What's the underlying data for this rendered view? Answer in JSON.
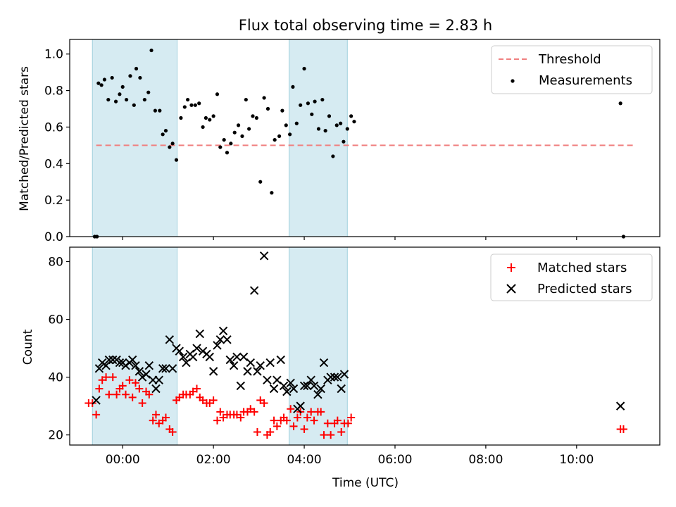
{
  "chart_data": [
    {
      "type": "scatter",
      "title": "Flux total observing time = 2.83 h",
      "xlabel": "",
      "ylabel": "Matched/Predicted stars",
      "xlim": [
        "-01:10",
        "11:50"
      ],
      "ylim": [
        0,
        1.08
      ],
      "yticks": [
        0.0,
        0.2,
        0.4,
        0.6,
        0.8,
        1.0
      ],
      "ytick_labels": [
        "0.0",
        "0.2",
        "0.4",
        "0.6",
        "0.8",
        "1.0"
      ],
      "shaded_spans": [
        [
          "-00:40",
          "01:12"
        ],
        [
          "03:40",
          "04:57"
        ]
      ],
      "threshold": {
        "name": "Threshold",
        "y": 0.5,
        "x_range": [
          "-00:35",
          "11:15"
        ],
        "color": "#f08080",
        "style": "dashed"
      },
      "legend": {
        "placement": "top-right",
        "entries": [
          "Threshold",
          "Measurements"
        ]
      },
      "series": [
        {
          "name": "Measurements",
          "color": "#000000",
          "marker": "dot",
          "points": [
            [
              "-00:37",
              0.0
            ],
            [
              "-00:34",
              0.0
            ],
            [
              "-00:32",
              0.84
            ],
            [
              "-00:28",
              0.83
            ],
            [
              "-00:24",
              0.86
            ],
            [
              "-00:19",
              0.75
            ],
            [
              "-00:14",
              0.87
            ],
            [
              "-00:09",
              0.74
            ],
            [
              "-00:04",
              0.78
            ],
            [
              "00:00",
              0.82
            ],
            [
              "00:05",
              0.75
            ],
            [
              "00:10",
              0.88
            ],
            [
              "00:15",
              0.72
            ],
            [
              "00:18",
              0.92
            ],
            [
              "00:23",
              0.87
            ],
            [
              "00:29",
              0.75
            ],
            [
              "00:34",
              0.79
            ],
            [
              "00:38",
              1.02
            ],
            [
              "00:43",
              0.69
            ],
            [
              "00:49",
              0.69
            ],
            [
              "00:53",
              0.56
            ],
            [
              "00:57",
              0.58
            ],
            [
              "01:02",
              0.49
            ],
            [
              "01:06",
              0.51
            ],
            [
              "01:11",
              0.42
            ],
            [
              "01:17",
              0.65
            ],
            [
              "01:22",
              0.71
            ],
            [
              "01:26",
              0.75
            ],
            [
              "01:31",
              0.72
            ],
            [
              "01:36",
              0.72
            ],
            [
              "01:41",
              0.73
            ],
            [
              "01:46",
              0.6
            ],
            [
              "01:50",
              0.65
            ],
            [
              "01:55",
              0.64
            ],
            [
              "02:00",
              0.66
            ],
            [
              "02:05",
              0.78
            ],
            [
              "02:09",
              0.49
            ],
            [
              "02:14",
              0.53
            ],
            [
              "02:18",
              0.46
            ],
            [
              "02:23",
              0.51
            ],
            [
              "02:28",
              0.57
            ],
            [
              "02:33",
              0.61
            ],
            [
              "02:38",
              0.55
            ],
            [
              "02:43",
              0.75
            ],
            [
              "02:47",
              0.59
            ],
            [
              "02:52",
              0.66
            ],
            [
              "02:57",
              0.65
            ],
            [
              "03:02",
              0.3
            ],
            [
              "03:07",
              0.76
            ],
            [
              "03:12",
              0.7
            ],
            [
              "03:17",
              0.24
            ],
            [
              "03:21",
              0.53
            ],
            [
              "03:27",
              0.55
            ],
            [
              "03:31",
              0.69
            ],
            [
              "03:36",
              0.61
            ],
            [
              "03:41",
              0.56
            ],
            [
              "03:45",
              0.82
            ],
            [
              "03:50",
              0.62
            ],
            [
              "03:55",
              0.72
            ],
            [
              "04:00",
              0.92
            ],
            [
              "04:05",
              0.73
            ],
            [
              "04:10",
              0.67
            ],
            [
              "04:14",
              0.74
            ],
            [
              "04:19",
              0.59
            ],
            [
              "04:24",
              0.75
            ],
            [
              "04:28",
              0.58
            ],
            [
              "04:33",
              0.66
            ],
            [
              "04:38",
              0.44
            ],
            [
              "04:43",
              0.61
            ],
            [
              "04:48",
              0.62
            ],
            [
              "04:52",
              0.52
            ],
            [
              "04:57",
              0.59
            ],
            [
              "05:02",
              0.66
            ],
            [
              "05:06",
              0.63
            ],
            [
              "10:58",
              0.73
            ],
            [
              "11:02",
              0.0
            ]
          ]
        }
      ]
    },
    {
      "type": "scatter",
      "title": "",
      "xlabel": "Time (UTC)",
      "ylabel": "Count",
      "xlim": [
        "-01:10",
        "11:50"
      ],
      "ylim": [
        16.5,
        85
      ],
      "xticks": [
        "00:00",
        "02:00",
        "04:00",
        "06:00",
        "08:00",
        "10:00"
      ],
      "yticks": [
        20,
        40,
        60,
        80
      ],
      "ytick_labels": [
        "20",
        "40",
        "60",
        "80"
      ],
      "shaded_spans": [
        [
          "-00:40",
          "01:12"
        ],
        [
          "03:40",
          "04:57"
        ]
      ],
      "legend": {
        "placement": "top-right",
        "entries": [
          "Matched stars",
          "Predicted stars"
        ]
      },
      "series": [
        {
          "name": "Matched stars",
          "color": "#ff0000",
          "marker": "plus",
          "points": [
            [
              "-00:45",
              31
            ],
            [
              "-00:40",
              31
            ],
            [
              "-00:35",
              27
            ],
            [
              "-00:31",
              36
            ],
            [
              "-00:27",
              39
            ],
            [
              "-00:22",
              40
            ],
            [
              "-00:18",
              34
            ],
            [
              "-00:13",
              40
            ],
            [
              "-00:08",
              34
            ],
            [
              "-00:04",
              36
            ],
            [
              "00:00",
              37
            ],
            [
              "00:04",
              34
            ],
            [
              "00:09",
              39
            ],
            [
              "00:13",
              33
            ],
            [
              "00:17",
              38
            ],
            [
              "00:22",
              36
            ],
            [
              "00:26",
              31
            ],
            [
              "00:31",
              35
            ],
            [
              "00:35",
              34
            ],
            [
              "00:40",
              25
            ],
            [
              "00:44",
              27
            ],
            [
              "00:48",
              24
            ],
            [
              "00:53",
              25
            ],
            [
              "00:57",
              26
            ],
            [
              "01:02",
              22
            ],
            [
              "01:06",
              21
            ],
            [
              "01:11",
              32
            ],
            [
              "01:15",
              33
            ],
            [
              "01:20",
              34
            ],
            [
              "01:24",
              34
            ],
            [
              "01:29",
              34
            ],
            [
              "01:33",
              35
            ],
            [
              "01:38",
              36
            ],
            [
              "01:42",
              33
            ],
            [
              "01:46",
              32
            ],
            [
              "01:51",
              31
            ],
            [
              "01:55",
              31
            ],
            [
              "02:00",
              32
            ],
            [
              "02:05",
              25
            ],
            [
              "02:09",
              28
            ],
            [
              "02:13",
              26
            ],
            [
              "02:18",
              27
            ],
            [
              "02:22",
              27
            ],
            [
              "02:27",
              27
            ],
            [
              "02:31",
              27
            ],
            [
              "02:36",
              26
            ],
            [
              "02:40",
              28
            ],
            [
              "02:45",
              28
            ],
            [
              "02:49",
              29
            ],
            [
              "02:54",
              28
            ],
            [
              "02:58",
              21
            ],
            [
              "03:02",
              32
            ],
            [
              "03:07",
              31
            ],
            [
              "03:11",
              20
            ],
            [
              "03:15",
              21
            ],
            [
              "03:20",
              25
            ],
            [
              "03:24",
              23
            ],
            [
              "03:29",
              25
            ],
            [
              "03:33",
              26
            ],
            [
              "03:37",
              25
            ],
            [
              "03:42",
              29
            ],
            [
              "03:46",
              23
            ],
            [
              "03:51",
              26
            ],
            [
              "03:55",
              28
            ],
            [
              "04:00",
              22
            ],
            [
              "04:04",
              26
            ],
            [
              "04:09",
              28
            ],
            [
              "04:13",
              25
            ],
            [
              "04:18",
              28
            ],
            [
              "04:22",
              28
            ],
            [
              "04:26",
              20
            ],
            [
              "04:31",
              24
            ],
            [
              "04:35",
              20
            ],
            [
              "04:40",
              24
            ],
            [
              "04:44",
              25
            ],
            [
              "04:49",
              21
            ],
            [
              "04:53",
              24
            ],
            [
              "04:58",
              24
            ],
            [
              "05:02",
              26
            ],
            [
              "10:58",
              22
            ],
            [
              "11:02",
              22
            ]
          ]
        },
        {
          "name": "Predicted stars",
          "color": "#000000",
          "marker": "cross",
          "points": [
            [
              "-00:35",
              32
            ],
            [
              "-00:31",
              43
            ],
            [
              "-00:27",
              45
            ],
            [
              "-00:22",
              44
            ],
            [
              "-00:18",
              46
            ],
            [
              "-00:13",
              46
            ],
            [
              "-00:08",
              46
            ],
            [
              "-00:04",
              45
            ],
            [
              "00:00",
              45
            ],
            [
              "00:04",
              44
            ],
            [
              "00:09",
              45
            ],
            [
              "00:13",
              46
            ],
            [
              "00:17",
              44
            ],
            [
              "00:22",
              42
            ],
            [
              "00:26",
              40
            ],
            [
              "00:31",
              41
            ],
            [
              "00:35",
              44
            ],
            [
              "00:40",
              39
            ],
            [
              "00:44",
              36
            ],
            [
              "00:48",
              39
            ],
            [
              "00:53",
              43
            ],
            [
              "00:57",
              43
            ],
            [
              "01:02",
              53
            ],
            [
              "01:06",
              43
            ],
            [
              "01:11",
              50
            ],
            [
              "01:15",
              49
            ],
            [
              "01:20",
              47
            ],
            [
              "01:24",
              45
            ],
            [
              "01:29",
              48
            ],
            [
              "01:33",
              47
            ],
            [
              "01:38",
              50
            ],
            [
              "01:42",
              55
            ],
            [
              "01:46",
              49
            ],
            [
              "01:51",
              48
            ],
            [
              "01:55",
              47
            ],
            [
              "02:00",
              42
            ],
            [
              "02:05",
              51
            ],
            [
              "02:09",
              53
            ],
            [
              "02:13",
              56
            ],
            [
              "02:18",
              53
            ],
            [
              "02:22",
              46
            ],
            [
              "02:27",
              44
            ],
            [
              "02:31",
              47
            ],
            [
              "02:36",
              37
            ],
            [
              "02:40",
              47
            ],
            [
              "02:45",
              42
            ],
            [
              "02:49",
              45
            ],
            [
              "02:54",
              70
            ],
            [
              "02:58",
              42
            ],
            [
              "03:02",
              44
            ],
            [
              "03:07",
              82
            ],
            [
              "03:11",
              39
            ],
            [
              "03:15",
              45
            ],
            [
              "03:20",
              36
            ],
            [
              "03:24",
              39
            ],
            [
              "03:29",
              46
            ],
            [
              "03:33",
              37
            ],
            [
              "03:37",
              35
            ],
            [
              "03:42",
              38
            ],
            [
              "03:46",
              36
            ],
            [
              "03:51",
              29
            ],
            [
              "03:55",
              30
            ],
            [
              "04:00",
              37
            ],
            [
              "04:04",
              37
            ],
            [
              "04:09",
              39
            ],
            [
              "04:13",
              37
            ],
            [
              "04:18",
              34
            ],
            [
              "04:22",
              36
            ],
            [
              "04:26",
              45
            ],
            [
              "04:31",
              39
            ],
            [
              "04:35",
              40
            ],
            [
              "04:40",
              40
            ],
            [
              "04:44",
              40
            ],
            [
              "04:49",
              36
            ],
            [
              "04:53",
              41
            ],
            [
              "10:58",
              30
            ]
          ]
        }
      ]
    }
  ]
}
